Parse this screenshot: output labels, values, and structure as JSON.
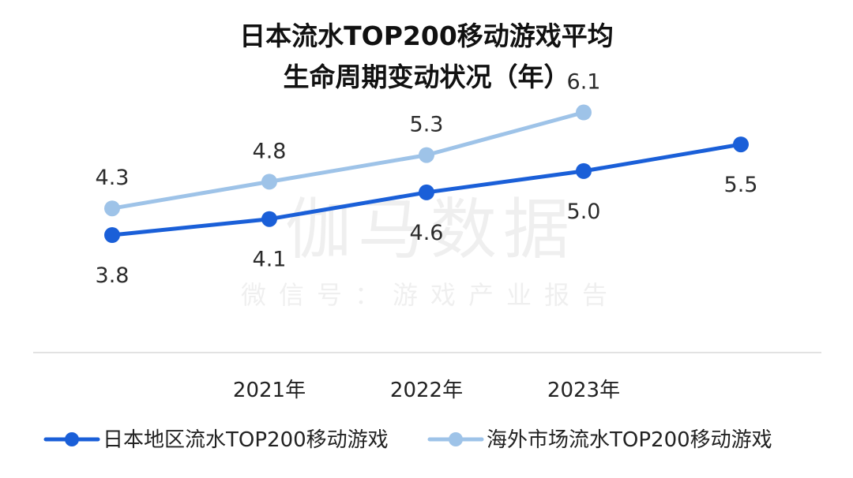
{
  "chart_data": {
    "type": "line",
    "title_lines": [
      "日本流水TOP200移动游戏平均",
      "生命周期变动状况（年）"
    ],
    "categories": [
      "",
      "2021年",
      "2022年",
      "2023年",
      ""
    ],
    "series": [
      {
        "name": "日本地区流水TOP200移动游戏",
        "values": [
          3.8,
          4.1,
          4.6,
          5.0,
          5.5
        ],
        "color": "#1a5fd8",
        "label_pos": "below"
      },
      {
        "name": "海外市场流水TOP200移动游戏",
        "values": [
          4.3,
          4.8,
          5.3,
          6.1,
          null
        ],
        "color": "#9ec3e8",
        "label_pos": "above"
      }
    ],
    "grid": false,
    "legend_position": "bottom"
  },
  "watermark": {
    "main": "伽马数据",
    "sub": "微信号：游戏产业报告"
  }
}
